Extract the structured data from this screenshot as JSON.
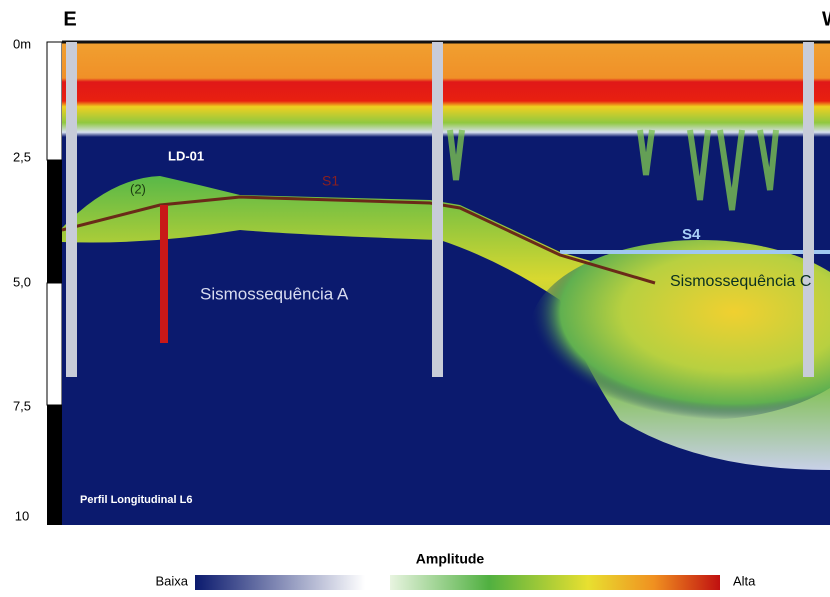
{
  "header": {
    "left": "E",
    "right": "W"
  },
  "depth_axis": {
    "labels": [
      "0m",
      "2,5",
      "5,0",
      "7,5",
      "10"
    ]
  },
  "annotations": {
    "core": "LD-01",
    "unit": "(2)",
    "surface": "S1",
    "reflector": "S4",
    "sequence_a": "Sismossequência A",
    "sequence_c": "Sismossequência C",
    "profile": "Perfil Longitudinal L6"
  },
  "colorbar": {
    "title": "Amplitude",
    "low": "Baixa",
    "high": "Alta"
  }
}
